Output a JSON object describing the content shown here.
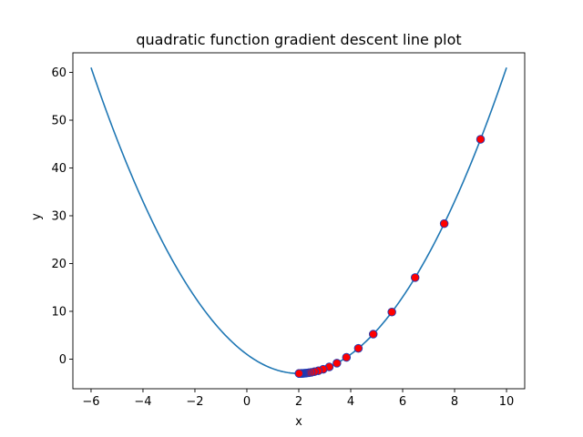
{
  "chart_data": {
    "type": "line",
    "title": "quadratic function gradient descent line plot",
    "xlabel": "x",
    "ylabel": "y",
    "xlim": [
      -6.7,
      10.7
    ],
    "ylim": [
      -6.2,
      64.1
    ],
    "x_ticks": [
      -6,
      -4,
      -2,
      0,
      2,
      4,
      6,
      8,
      10
    ],
    "y_ticks": [
      0,
      10,
      20,
      30,
      40,
      50,
      60
    ],
    "x_tick_labels": [
      "−6",
      "−4",
      "−2",
      "0",
      "2",
      "4",
      "6",
      "8",
      "10"
    ],
    "y_tick_labels": [
      "0",
      "10",
      "20",
      "30",
      "40",
      "50",
      "60"
    ],
    "grid": false,
    "series": [
      {
        "kind": "line",
        "function": "y = x^2 - 4x + 1",
        "x_range": [
          -6,
          10
        ],
        "color": "#1f77b4"
      },
      {
        "kind": "scatter",
        "color": "#ff0000",
        "edge_color": "#1f3ab4",
        "points": [
          [
            9.0,
            46.0
          ],
          [
            7.6,
            28.36
          ],
          [
            6.48,
            17.07
          ],
          [
            5.584,
            9.85
          ],
          [
            4.867,
            5.22
          ],
          [
            4.294,
            2.26
          ],
          [
            3.835,
            0.37
          ],
          [
            3.468,
            -0.85
          ],
          [
            3.174,
            -1.62
          ],
          [
            2.939,
            -2.12
          ],
          [
            2.751,
            -2.44
          ],
          [
            2.601,
            -2.64
          ],
          [
            2.481,
            -2.77
          ],
          [
            2.385,
            -2.85
          ],
          [
            2.308,
            -2.91
          ],
          [
            2.246,
            -2.94
          ],
          [
            2.197,
            -2.96
          ],
          [
            2.158,
            -2.98
          ],
          [
            2.126,
            -2.98
          ],
          [
            2.101,
            -2.99
          ],
          [
            2.081,
            -2.99
          ],
          [
            2.065,
            -3.0
          ],
          [
            2.052,
            -3.0
          ],
          [
            2.041,
            -3.0
          ],
          [
            2.033,
            -3.0
          ],
          [
            2.027,
            -3.0
          ],
          [
            2.021,
            -3.0
          ],
          [
            2.017,
            -3.0
          ],
          [
            2.014,
            -3.0
          ],
          [
            2.011,
            -3.0
          ]
        ]
      }
    ]
  }
}
